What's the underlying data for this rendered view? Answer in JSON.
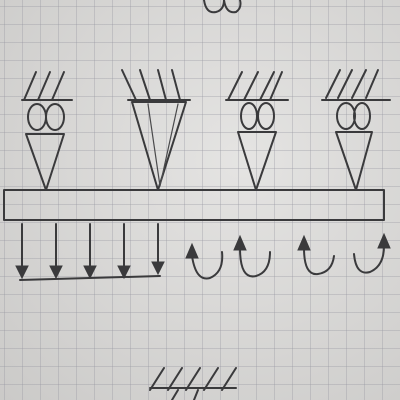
{
  "diagram": {
    "ink_color": "#3a3a3c",
    "paper_color": "#dcdbd9",
    "grid_color": "#9696a0",
    "supports": [
      {
        "type": "fixed-with-rollers"
      },
      {
        "type": "fixed-pin"
      },
      {
        "type": "fixed-with-rollers"
      },
      {
        "type": "fixed-with-rollers"
      }
    ],
    "distributed_load": {
      "arrow_count": 5
    },
    "moments": [
      {
        "direction": "clockwise"
      },
      {
        "direction": "counter-clockwise"
      },
      {
        "direction": "clockwise"
      },
      {
        "direction": "counter-clockwise"
      }
    ]
  }
}
